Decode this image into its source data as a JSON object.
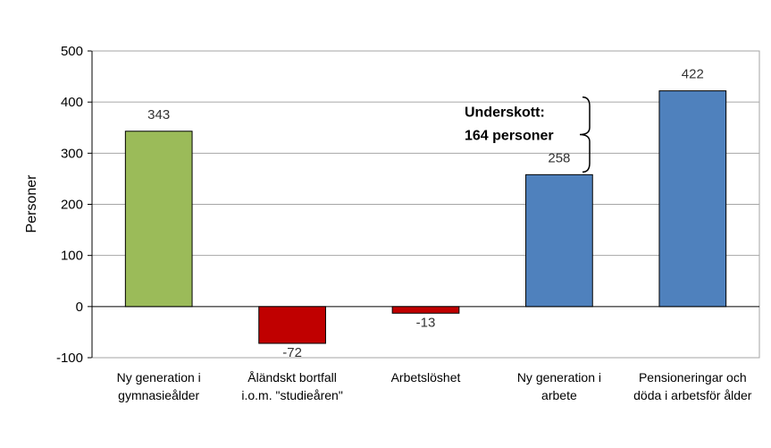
{
  "chart_data": {
    "type": "bar",
    "title": "",
    "xlabel": "",
    "ylabel": "Personer",
    "ylim": [
      -100,
      500
    ],
    "yticks": [
      -100,
      0,
      100,
      200,
      300,
      400,
      500
    ],
    "grid": true,
    "legend": "none",
    "categories": [
      [
        "Ny generation i",
        "gymnasieålder"
      ],
      [
        "Åländskt bortfall",
        "i.o.m. \"studieåren\""
      ],
      [
        "Arbetslöshet"
      ],
      [
        "Ny generation i",
        "arbete"
      ],
      [
        "Pensioneringar och",
        "döda i arbetsför ålder"
      ]
    ],
    "values": [
      343,
      -72,
      -13,
      258,
      422
    ],
    "data_labels": [
      "343",
      "-72",
      "-13",
      "258",
      "422"
    ],
    "colors": [
      "#9BBB59",
      "#C00000",
      "#C00000",
      "#4F81BD",
      "#4F81BD"
    ],
    "bracket_range": [
      258,
      422
    ],
    "annotation": [
      "Underskott:",
      "164 personer"
    ]
  }
}
